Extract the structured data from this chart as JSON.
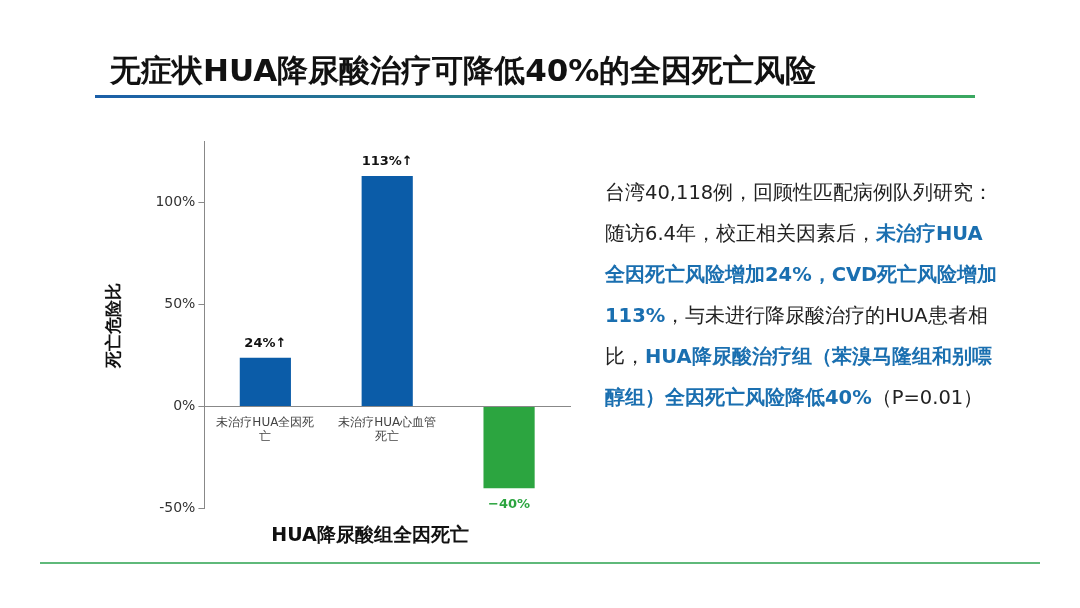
{
  "chart_data": {
    "type": "bar",
    "title": "无症状HUA降尿酸治疗可降低40%的全因死亡风险",
    "xlabel": "HUA降尿酸组全因死亡",
    "ylabel": "死亡危险比",
    "categories": [
      "未治疗HUA全因死亡",
      "未治疗HUA心血管死亡",
      null
    ],
    "values": [
      24,
      113,
      -40
    ],
    "colors": [
      "#0b5ca8",
      "#0b5ca8",
      "#2ca540"
    ],
    "value_labels": [
      "24%↑",
      "113%↑",
      "−40%"
    ],
    "ylim": [
      -50,
      130
    ],
    "yticks": [
      {
        "value": -50,
        "label": "-50%"
      },
      {
        "value": 0,
        "label": "0%"
      },
      {
        "value": 50,
        "label": "50%"
      },
      {
        "value": 100,
        "label": "100%"
      }
    ],
    "grid": false,
    "legend": false,
    "annotations": [
      "台湾40,118例，回顾性匹配病例队列研究：随访6.4年，校正相关因素后，",
      "未治疗HUA全因死亡风险增加24%，CVD死亡风险增加113%",
      "，与未进行降尿酸治疗的HUA患者相比，",
      "HUA降尿酸治疗组（苯溴马隆组和别嘌醇组）全因死亡风险降低40%",
      "（P=0.01）"
    ]
  }
}
